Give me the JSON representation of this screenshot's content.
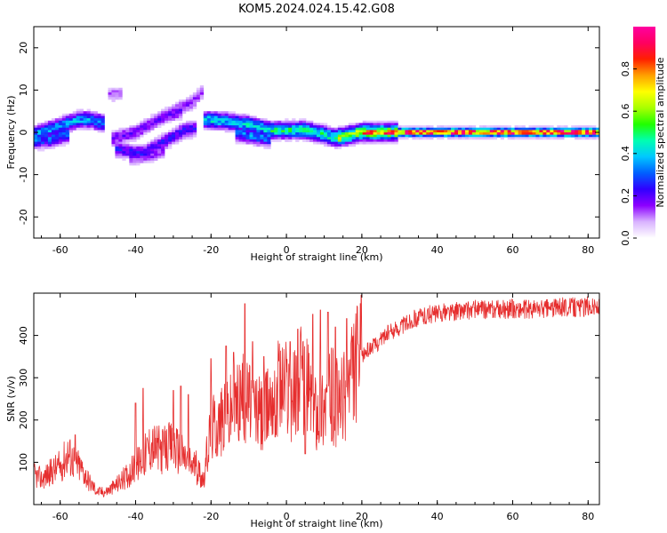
{
  "title": "KOM5.2024.024.15.42.G08",
  "colors": {
    "snr_line": "#e62e2e",
    "axis": "#000000",
    "colormap": [
      "#ffffff",
      "#d9b3ff",
      "#8c00ff",
      "#3000ff",
      "#0060ff",
      "#00c8ff",
      "#00ffb0",
      "#20ff00",
      "#a8ff00",
      "#ffff00",
      "#ffa000",
      "#ff2000",
      "#ff0060",
      "#ff00a0"
    ]
  },
  "chart_data": [
    {
      "type": "heatmap",
      "xlabel": "Height of straight line (km)",
      "ylabel": "Frequency (Hz)",
      "xlim": [
        -67,
        83
      ],
      "ylim": [
        -25,
        25
      ],
      "xticks": [
        -60,
        -40,
        -20,
        0,
        20,
        40,
        60,
        80
      ],
      "yticks": [
        -20,
        -10,
        0,
        10,
        20
      ],
      "colorbar": {
        "label": "Normalized spectral amplitude",
        "range": [
          0,
          1
        ],
        "ticks": [
          "0.0",
          "0.2",
          "0.4",
          "0.6",
          "0.8"
        ]
      },
      "ridges": [
        {
          "x": [
            -67,
            -60,
            -55,
            -52,
            -48
          ],
          "f": [
            -0.5,
            1.5,
            3.0,
            3.0,
            2.0
          ],
          "amp": 0.35
        },
        {
          "x": [
            -67,
            -62,
            -58
          ],
          "f": [
            -2.0,
            -1.5,
            -0.5
          ],
          "amp": 0.3
        },
        {
          "x": [
            -47,
            -44
          ],
          "f": [
            9.0,
            9.0
          ],
          "amp": 0.12
        },
        {
          "x": [
            -46,
            -40,
            -36,
            -32,
            -28
          ],
          "f": [
            -1.5,
            0.0,
            2.0,
            4.0,
            5.0
          ],
          "amp": 0.18
        },
        {
          "x": [
            -45,
            -38,
            -32,
            -27,
            -24
          ],
          "f": [
            -4.0,
            -5.0,
            -2.0,
            0.5,
            1.0
          ],
          "amp": 0.22
        },
        {
          "x": [
            -42,
            -36,
            -32
          ],
          "f": [
            -6.0,
            -5.5,
            -4.0
          ],
          "amp": 0.15
        },
        {
          "x": [
            -30,
            -25,
            -22
          ],
          "f": [
            5.0,
            7.0,
            10.0
          ],
          "amp": 0.15
        },
        {
          "x": [
            -22,
            -15,
            -8,
            -5
          ],
          "f": [
            3.0,
            2.5,
            1.5,
            0.5
          ],
          "amp": 0.4
        },
        {
          "x": [
            -14,
            -8,
            -4
          ],
          "f": [
            0.0,
            -1.0,
            -1.5
          ],
          "amp": 0.32
        },
        {
          "x": [
            -5,
            0,
            5,
            10,
            14
          ],
          "f": [
            0.5,
            0.5,
            0.5,
            -0.5,
            -1.5
          ],
          "amp": 0.45
        },
        {
          "x": [
            14,
            20,
            30
          ],
          "f": [
            -1.2,
            0.0,
            0.0
          ],
          "amp": 0.6
        },
        {
          "x": [
            20,
            40,
            60,
            83
          ],
          "f": [
            0.0,
            0.0,
            0.0,
            0.0
          ],
          "amp": 0.88
        }
      ]
    },
    {
      "type": "line",
      "xlabel": "Height of straight line (km)",
      "ylabel": "SNR (v/v)",
      "xlim": [
        -67,
        83
      ],
      "ylim": [
        0,
        500
      ],
      "xticks": [
        -60,
        -40,
        -20,
        0,
        20,
        40,
        60,
        80
      ],
      "yticks": [
        100,
        200,
        300,
        400
      ],
      "series": [
        {
          "color": "#e62e2e",
          "x": [
            -67,
            -65,
            -62,
            -60,
            -58,
            -56,
            -54,
            -52,
            -50,
            -48,
            -46,
            -44,
            -42,
            -40,
            -38,
            -36,
            -34,
            -32,
            -30,
            -28,
            -26,
            -24,
            -22,
            -20,
            -18,
            -16,
            -14,
            -12,
            -10,
            -8,
            -6,
            -4,
            -2,
            0,
            2,
            4,
            6,
            8,
            10,
            12,
            14,
            16,
            18,
            20,
            22,
            24,
            26,
            28,
            30,
            32,
            34,
            36,
            38,
            40,
            42,
            44,
            46,
            48,
            50,
            52,
            54,
            56,
            58,
            60,
            62,
            64,
            66,
            68,
            70,
            72,
            74,
            76,
            78,
            80,
            82,
            83
          ],
          "y": [
            70,
            60,
            80,
            90,
            120,
            100,
            80,
            50,
            30,
            30,
            40,
            55,
            70,
            90,
            110,
            140,
            130,
            130,
            140,
            120,
            100,
            90,
            60,
            180,
            190,
            200,
            230,
            250,
            240,
            220,
            200,
            260,
            280,
            280,
            260,
            300,
            270,
            230,
            240,
            260,
            230,
            270,
            320,
            350,
            370,
            380,
            400,
            410,
            420,
            430,
            440,
            445,
            450,
            450,
            455,
            455,
            458,
            460,
            462,
            460,
            460,
            462,
            462,
            463,
            462,
            462,
            463,
            464,
            465,
            466,
            468,
            467,
            466,
            470,
            468,
            465
          ],
          "spikes": [
            {
              "x": -56,
              "y": 165
            },
            {
              "x": -40,
              "y": 240
            },
            {
              "x": -38,
              "y": 275
            },
            {
              "x": -30,
              "y": 270
            },
            {
              "x": -28,
              "y": 280
            },
            {
              "x": -26,
              "y": 260
            },
            {
              "x": -20,
              "y": 345
            },
            {
              "x": -16,
              "y": 375
            },
            {
              "x": -14,
              "y": 360
            },
            {
              "x": -11,
              "y": 475
            },
            {
              "x": -9,
              "y": 385
            },
            {
              "x": -6,
              "y": 350
            },
            {
              "x": -2,
              "y": 340
            },
            {
              "x": 1,
              "y": 385
            },
            {
              "x": 3,
              "y": 415
            },
            {
              "x": 7,
              "y": 450
            },
            {
              "x": 9,
              "y": 460
            },
            {
              "x": 11,
              "y": 455
            },
            {
              "x": 13,
              "y": 420
            },
            {
              "x": 16,
              "y": 440
            },
            {
              "x": 12,
              "y": 150
            },
            {
              "x": 5,
              "y": 120
            },
            {
              "x": -3,
              "y": 160
            }
          ]
        }
      ]
    }
  ]
}
